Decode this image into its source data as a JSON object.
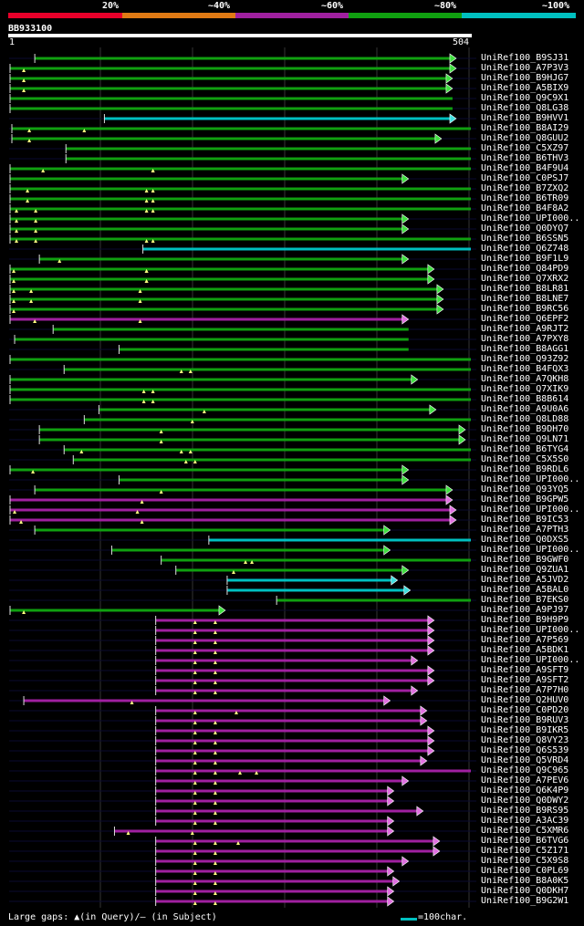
{
  "title": "BB933100",
  "ruler": {
    "start": "1",
    "end": "504",
    "query_length": 504
  },
  "legend": [
    {
      "label": "20%",
      "color": "#e8002a"
    },
    {
      "label": "~40%",
      "color": "#e07a14"
    },
    {
      "label": "~60%",
      "color": "#a020a0"
    },
    {
      "label": "~80%",
      "color": "#10a010"
    },
    {
      "label": "~100%",
      "color": "#00c0c0"
    }
  ],
  "footer": {
    "gaps_text": "Large gaps: ▲(in Query)/– (in Subject)",
    "scale_text": "=100char."
  },
  "rows": [
    {
      "id": "UniRef100_B9SJ31",
      "color": "green",
      "start": 28,
      "end": 488,
      "arrow": true,
      "gaps": []
    },
    {
      "id": "UniRef100_A7P3V3",
      "color": "green",
      "start": 1,
      "end": 488,
      "arrow": true,
      "gaps": [
        16
      ]
    },
    {
      "id": "UniRef100_B9HJG7",
      "color": "green",
      "start": 1,
      "end": 484,
      "arrow": true,
      "gaps": [
        16
      ]
    },
    {
      "id": "UniRef100_A5BIX9",
      "color": "green",
      "start": 1,
      "end": 484,
      "arrow": true,
      "gaps": [
        16
      ]
    },
    {
      "id": "UniRef100_Q9C9X1",
      "color": "green",
      "start": 1,
      "end": 484,
      "arrow": false,
      "gaps": []
    },
    {
      "id": "UniRef100_Q8LG38",
      "color": "green",
      "start": 1,
      "end": 484,
      "arrow": false,
      "gaps": []
    },
    {
      "id": "UniRef100_B9HVV1",
      "color": "cyan",
      "start": 104,
      "end": 488,
      "arrow": true,
      "gaps": []
    },
    {
      "id": "UniRef100_B8AI29",
      "color": "green",
      "start": 3,
      "end": 504,
      "arrow": false,
      "gaps": [
        22,
        82
      ]
    },
    {
      "id": "UniRef100_Q8GUU2",
      "color": "green",
      "start": 3,
      "end": 472,
      "arrow": true,
      "gaps": [
        22
      ]
    },
    {
      "id": "UniRef100_C5XZ97",
      "color": "green",
      "start": 62,
      "end": 504,
      "arrow": false,
      "gaps": []
    },
    {
      "id": "UniRef100_B6THV3",
      "color": "green",
      "start": 62,
      "end": 504,
      "arrow": false,
      "gaps": []
    },
    {
      "id": "UniRef100_B4F9U4",
      "color": "green",
      "start": 1,
      "end": 504,
      "arrow": false,
      "gaps": [
        37,
        157,
        157
      ]
    },
    {
      "id": "UniRef100_C0PSJ7",
      "color": "green",
      "start": 1,
      "end": 436,
      "arrow": true,
      "gaps": []
    },
    {
      "id": "UniRef100_B7ZXQ2",
      "color": "green",
      "start": 1,
      "end": 504,
      "arrow": false,
      "gaps": [
        20,
        150,
        157
      ]
    },
    {
      "id": "UniRef100_B6TR09",
      "color": "green",
      "start": 1,
      "end": 504,
      "arrow": false,
      "gaps": [
        20,
        150,
        157
      ]
    },
    {
      "id": "UniRef100_B4F8A2",
      "color": "green",
      "start": 1,
      "end": 504,
      "arrow": false,
      "gaps": [
        8,
        29,
        150,
        157
      ]
    },
    {
      "id": "UniRef100_UPI000..",
      "color": "green",
      "start": 1,
      "end": 436,
      "arrow": true,
      "gaps": [
        8,
        29
      ]
    },
    {
      "id": "UniRef100_Q0DYQ7",
      "color": "green",
      "start": 1,
      "end": 436,
      "arrow": true,
      "gaps": [
        8,
        29
      ]
    },
    {
      "id": "UniRef100_B6SSN5",
      "color": "green",
      "start": 1,
      "end": 504,
      "arrow": false,
      "gaps": [
        8,
        29,
        150,
        157
      ]
    },
    {
      "id": "UniRef100_Q6Z748",
      "color": "cyan",
      "start": 146,
      "end": 504,
      "arrow": false,
      "gaps": []
    },
    {
      "id": "UniRef100_B9F1L9",
      "color": "green",
      "start": 33,
      "end": 436,
      "arrow": true,
      "gaps": [
        55
      ]
    },
    {
      "id": "UniRef100_Q84PD9",
      "color": "green",
      "start": 1,
      "end": 464,
      "arrow": true,
      "gaps": [
        5,
        150,
        150
      ]
    },
    {
      "id": "UniRef100_Q7XRX2",
      "color": "green",
      "start": 1,
      "end": 464,
      "arrow": true,
      "gaps": [
        5,
        150,
        150
      ]
    },
    {
      "id": "UniRef100_B8LR81",
      "color": "green",
      "start": 1,
      "end": 474,
      "arrow": true,
      "gaps": [
        5,
        24,
        143
      ]
    },
    {
      "id": "UniRef100_B8LNE7",
      "color": "green",
      "start": 1,
      "end": 474,
      "arrow": true,
      "gaps": [
        5,
        24,
        143
      ]
    },
    {
      "id": "UniRef100_B9RC56",
      "color": "green",
      "start": 1,
      "end": 474,
      "arrow": true,
      "gaps": [
        5
      ]
    },
    {
      "id": "UniRef100_Q6EPF2",
      "color": "magenta",
      "start": 1,
      "end": 436,
      "arrow": true,
      "gaps": [
        28,
        143
      ]
    },
    {
      "id": "UniRef100_A9RJT2",
      "color": "green",
      "start": 48,
      "end": 436,
      "arrow": false,
      "gaps": []
    },
    {
      "id": "UniRef100_A7PXY8",
      "color": "green",
      "start": 6,
      "end": 436,
      "arrow": false,
      "gaps": []
    },
    {
      "id": "UniRef100_B8AGG1",
      "color": "green",
      "start": 120,
      "end": 436,
      "arrow": false,
      "gaps": []
    },
    {
      "id": "UniRef100_Q93Z92",
      "color": "green",
      "start": 1,
      "end": 504,
      "arrow": false,
      "gaps": []
    },
    {
      "id": "UniRef100_B4FQX3",
      "color": "green",
      "start": 60,
      "end": 504,
      "arrow": false,
      "gaps": [
        188,
        198
      ]
    },
    {
      "id": "UniRef100_A7QKH8",
      "color": "green",
      "start": 1,
      "end": 446,
      "arrow": true,
      "gaps": []
    },
    {
      "id": "UniRef100_Q7XIK9",
      "color": "green",
      "start": 1,
      "end": 504,
      "arrow": false,
      "gaps": [
        147,
        157
      ]
    },
    {
      "id": "UniRef100_B8B614",
      "color": "green",
      "start": 1,
      "end": 504,
      "arrow": false,
      "gaps": [
        147,
        157
      ]
    },
    {
      "id": "UniRef100_A9U0A6",
      "color": "green",
      "start": 98,
      "end": 466,
      "arrow": true,
      "gaps": [
        213
      ]
    },
    {
      "id": "UniRef100_Q8LD88",
      "color": "green",
      "start": 82,
      "end": 504,
      "arrow": false,
      "gaps": [
        200
      ]
    },
    {
      "id": "UniRef100_B9DH70",
      "color": "green",
      "start": 33,
      "end": 498,
      "arrow": true,
      "gaps": [
        166
      ]
    },
    {
      "id": "UniRef100_Q9LN71",
      "color": "green",
      "start": 33,
      "end": 498,
      "arrow": true,
      "gaps": [
        166
      ]
    },
    {
      "id": "UniRef100_B6TYG4",
      "color": "green",
      "start": 60,
      "end": 504,
      "arrow": false,
      "gaps": [
        79,
        188,
        198
      ]
    },
    {
      "id": "UniRef100_C5X5S0",
      "color": "green",
      "start": 70,
      "end": 504,
      "arrow": false,
      "gaps": [
        193,
        203
      ]
    },
    {
      "id": "UniRef100_B9RDL6",
      "color": "green",
      "start": 1,
      "end": 436,
      "arrow": true,
      "gaps": [
        26
      ]
    },
    {
      "id": "UniRef100_UPI000..",
      "color": "green",
      "start": 120,
      "end": 436,
      "arrow": true,
      "gaps": []
    },
    {
      "id": "UniRef100_Q93YQ5",
      "color": "green",
      "start": 28,
      "end": 484,
      "arrow": true,
      "gaps": [
        166
      ]
    },
    {
      "id": "UniRef100_B9GPW5",
      "color": "magenta",
      "start": 1,
      "end": 484,
      "arrow": true,
      "gaps": [
        145
      ]
    },
    {
      "id": "UniRef100_UPI000..",
      "color": "magenta",
      "start": 1,
      "end": 488,
      "arrow": true,
      "gaps": [
        6,
        140
      ]
    },
    {
      "id": "UniRef100_B9IC53",
      "color": "magenta",
      "start": 1,
      "end": 488,
      "arrow": true,
      "gaps": [
        13,
        145
      ]
    },
    {
      "id": "UniRef100_A7PTH3",
      "color": "green",
      "start": 28,
      "end": 416,
      "arrow": true,
      "gaps": []
    },
    {
      "id": "UniRef100_Q0DXS5",
      "color": "cyan",
      "start": 218,
      "end": 504,
      "arrow": false,
      "gaps": []
    },
    {
      "id": "UniRef100_UPI000..",
      "color": "green",
      "start": 112,
      "end": 416,
      "arrow": true,
      "gaps": []
    },
    {
      "id": "UniRef100_B9GWF0",
      "color": "green",
      "start": 166,
      "end": 504,
      "arrow": false,
      "gaps": [
        258,
        265
      ]
    },
    {
      "id": "UniRef100_Q9ZUA1",
      "color": "green",
      "start": 182,
      "end": 436,
      "arrow": true,
      "gaps": [
        245
      ]
    },
    {
      "id": "UniRef100_A5JVD2",
      "color": "cyan",
      "start": 238,
      "end": 424,
      "arrow": true,
      "gaps": []
    },
    {
      "id": "UniRef100_A5BAL0",
      "color": "cyan",
      "start": 238,
      "end": 438,
      "arrow": true,
      "gaps": []
    },
    {
      "id": "UniRef100_B7EKS0",
      "color": "green",
      "start": 292,
      "end": 504,
      "arrow": false,
      "gaps": []
    },
    {
      "id": "UniRef100_A9PJ97",
      "color": "green",
      "start": 1,
      "end": 236,
      "arrow": true,
      "gaps": [
        16
      ]
    },
    {
      "id": "UniRef100_B9H9P9",
      "color": "magenta",
      "start": 160,
      "end": 464,
      "arrow": true,
      "gaps": [
        203,
        225
      ]
    },
    {
      "id": "UniRef100_UPI000..",
      "color": "magenta",
      "start": 160,
      "end": 464,
      "arrow": true,
      "gaps": [
        203,
        225
      ]
    },
    {
      "id": "UniRef100_A7P569",
      "color": "magenta",
      "start": 160,
      "end": 464,
      "arrow": true,
      "gaps": [
        203,
        225
      ]
    },
    {
      "id": "UniRef100_A5BDK1",
      "color": "magenta",
      "start": 160,
      "end": 464,
      "arrow": true,
      "gaps": [
        203,
        225
      ]
    },
    {
      "id": "UniRef100_UPI000..",
      "color": "magenta",
      "start": 160,
      "end": 446,
      "arrow": true,
      "gaps": [
        203,
        225
      ]
    },
    {
      "id": "UniRef100_A9SFT9",
      "color": "magenta",
      "start": 160,
      "end": 464,
      "arrow": true,
      "gaps": [
        203,
        225
      ]
    },
    {
      "id": "UniRef100_A9SFT2",
      "color": "magenta",
      "start": 160,
      "end": 464,
      "arrow": true,
      "gaps": [
        203,
        225
      ]
    },
    {
      "id": "UniRef100_A7P7H0",
      "color": "magenta",
      "start": 160,
      "end": 446,
      "arrow": true,
      "gaps": [
        203,
        225
      ]
    },
    {
      "id": "UniRef100_Q2HUV0",
      "color": "magenta",
      "start": 16,
      "end": 416,
      "arrow": true,
      "gaps": [
        134
      ]
    },
    {
      "id": "UniRef100_C0PD20",
      "color": "magenta",
      "start": 160,
      "end": 456,
      "arrow": true,
      "gaps": [
        203,
        248
      ]
    },
    {
      "id": "UniRef100_B9RUV3",
      "color": "magenta",
      "start": 160,
      "end": 456,
      "arrow": true,
      "gaps": [
        203,
        225
      ]
    },
    {
      "id": "UniRef100_B9IKR5",
      "color": "magenta",
      "start": 160,
      "end": 464,
      "arrow": true,
      "gaps": [
        203,
        225
      ]
    },
    {
      "id": "UniRef100_Q8VY23",
      "color": "magenta",
      "start": 160,
      "end": 464,
      "arrow": true,
      "gaps": [
        203,
        225
      ]
    },
    {
      "id": "UniRef100_Q6S539",
      "color": "magenta",
      "start": 160,
      "end": 464,
      "arrow": true,
      "gaps": [
        203,
        225
      ]
    },
    {
      "id": "UniRef100_Q5VRD4",
      "color": "magenta",
      "start": 160,
      "end": 456,
      "arrow": true,
      "gaps": [
        203,
        225
      ]
    },
    {
      "id": "UniRef100_Q9C965",
      "color": "magenta",
      "start": 160,
      "end": 504,
      "arrow": false,
      "gaps": [
        203,
        225,
        252,
        270
      ]
    },
    {
      "id": "UniRef100_A7PEV6",
      "color": "magenta",
      "start": 160,
      "end": 436,
      "arrow": true,
      "gaps": [
        203,
        225
      ]
    },
    {
      "id": "UniRef100_Q6K4P9",
      "color": "magenta",
      "start": 160,
      "end": 420,
      "arrow": true,
      "gaps": [
        203,
        225
      ]
    },
    {
      "id": "UniRef100_Q0DWY2",
      "color": "magenta",
      "start": 160,
      "end": 420,
      "arrow": true,
      "gaps": [
        203,
        225
      ]
    },
    {
      "id": "UniRef100_B9RS95",
      "color": "magenta",
      "start": 160,
      "end": 452,
      "arrow": true,
      "gaps": [
        203,
        225
      ]
    },
    {
      "id": "UniRef100_A3AC39",
      "color": "magenta",
      "start": 160,
      "end": 420,
      "arrow": true,
      "gaps": [
        203,
        225
      ]
    },
    {
      "id": "UniRef100_C5XMR6",
      "color": "magenta",
      "start": 115,
      "end": 420,
      "arrow": true,
      "gaps": [
        130,
        200
      ]
    },
    {
      "id": "UniRef100_B6TVG6",
      "color": "magenta",
      "start": 160,
      "end": 470,
      "arrow": true,
      "gaps": [
        203,
        225,
        250
      ]
    },
    {
      "id": "UniRef100_C5Z171",
      "color": "magenta",
      "start": 160,
      "end": 470,
      "arrow": true,
      "gaps": [
        203,
        225
      ]
    },
    {
      "id": "UniRef100_C5X9S8",
      "color": "magenta",
      "start": 160,
      "end": 436,
      "arrow": true,
      "gaps": [
        203,
        225
      ]
    },
    {
      "id": "UniRef100_C0PL69",
      "color": "magenta",
      "start": 160,
      "end": 420,
      "arrow": true,
      "gaps": [
        203,
        225
      ]
    },
    {
      "id": "UniRef100_B8A0K5",
      "color": "magenta",
      "start": 160,
      "end": 426,
      "arrow": true,
      "gaps": [
        203,
        225
      ]
    },
    {
      "id": "UniRef100_Q0DKH7",
      "color": "magenta",
      "start": 160,
      "end": 420,
      "arrow": true,
      "gaps": [
        203,
        225
      ]
    },
    {
      "id": "UniRef100_B9G2W1",
      "color": "magenta",
      "start": 160,
      "end": 420,
      "arrow": true,
      "gaps": [
        203,
        225
      ]
    }
  ]
}
